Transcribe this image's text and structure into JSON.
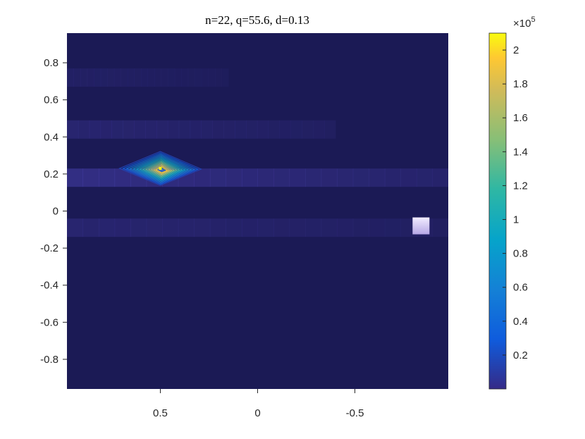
{
  "chart_data": {
    "type": "heatmap",
    "title": "n=22, q=55.6, d=0.13",
    "xlabel": "",
    "ylabel": "",
    "x_direction": "reversed",
    "xlim": [
      0.98,
      -0.98
    ],
    "ylim": [
      -0.96,
      0.96
    ],
    "xticks": [
      0.5,
      0,
      -0.5
    ],
    "xtick_labels": [
      "0.5",
      "0",
      "-0.5"
    ],
    "yticks": [
      0.8,
      0.6,
      0.4,
      0.2,
      0,
      -0.2,
      -0.4,
      -0.6,
      -0.8
    ],
    "ytick_labels": [
      "0.8",
      "0.6",
      "0.4",
      "0.2",
      "0",
      "-0.2",
      "-0.4",
      "-0.6",
      "-0.8"
    ],
    "grid": false,
    "colormap": "parula",
    "background_color": "#1b1a55",
    "colorbar": {
      "placement": "right",
      "range": [
        0.0,
        2.1
      ],
      "ticks": [
        0.2,
        0.4,
        0.6,
        0.8,
        1,
        1.2,
        1.4,
        1.6,
        1.8,
        2
      ],
      "tick_labels": [
        "0.2",
        "0.4",
        "0.6",
        "0.8",
        "1",
        "1.2",
        "1.4",
        "1.6",
        "1.8",
        "2"
      ],
      "multiplier": "×10",
      "multiplier_exponent": "5"
    },
    "bands": [
      {
        "y_center": 0.72,
        "x_from": 0.98,
        "x_to": 0.15,
        "intensity": 0.03
      },
      {
        "y_center": 0.44,
        "x_from": 0.98,
        "x_to": -0.4,
        "intensity": 0.05
      },
      {
        "y_center": 0.18,
        "x_from": 0.98,
        "x_to": -0.98,
        "intensity": 0.09
      },
      {
        "y_center": -0.09,
        "x_from": 0.98,
        "x_to": -0.98,
        "intensity": 0.05
      }
    ],
    "peak": {
      "x": 0.5,
      "y": 0.23,
      "value_e5": 2.1
    },
    "contour_levels": [
      0.15,
      0.3,
      0.45,
      0.6,
      0.75,
      0.9,
      1.05,
      1.2,
      1.35,
      1.5,
      1.65,
      1.8,
      1.95
    ],
    "highlight_cell": {
      "x": -0.84,
      "y": -0.08,
      "color": "#d8cdf4"
    }
  }
}
